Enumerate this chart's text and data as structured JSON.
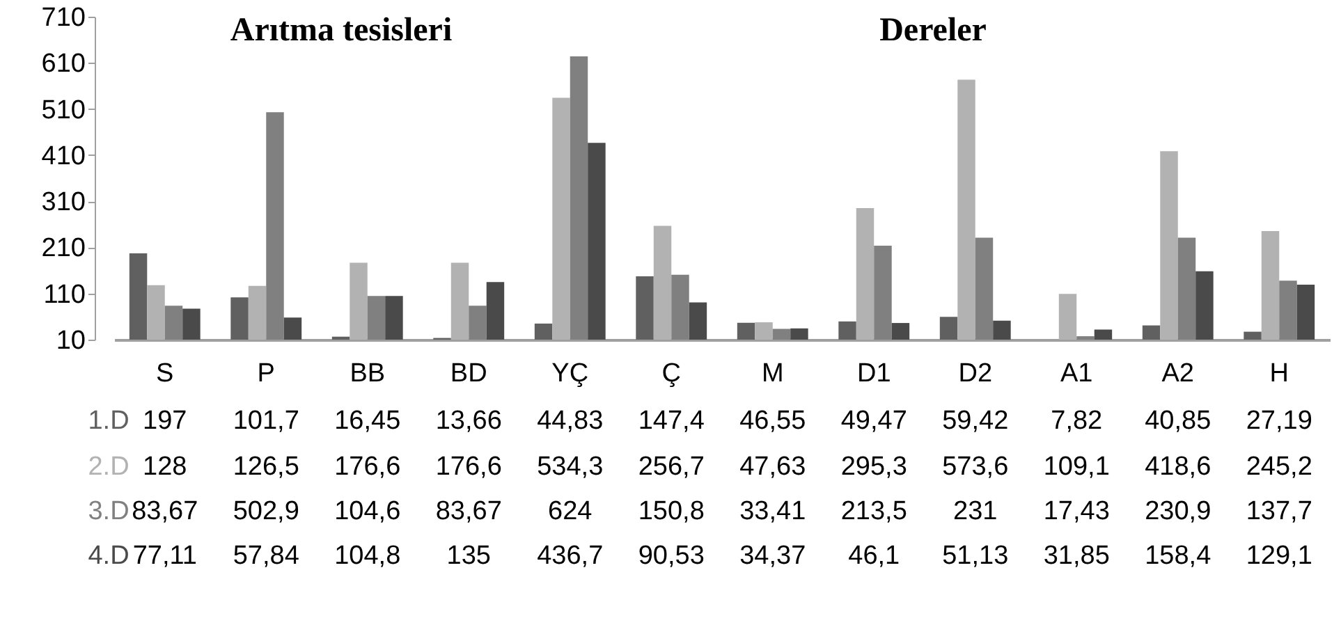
{
  "chart_data": {
    "type": "bar",
    "categories": [
      "S",
      "P",
      "BB",
      "BD",
      "YÇ",
      "Ç",
      "M",
      "D1",
      "D2",
      "A1",
      "A2",
      "H"
    ],
    "ylim": [
      10,
      710
    ],
    "yticks": [
      10,
      110,
      210,
      310,
      410,
      510,
      610,
      710
    ],
    "grid": false,
    "annotations": [
      "Arıtma tesisleri",
      "Dereler"
    ],
    "series": [
      {
        "name": "1.D",
        "color": "#606060",
        "values": [
          197,
          101.7,
          16.45,
          13.66,
          44.83,
          147.4,
          46.55,
          49.47,
          59.42,
          null,
          40.85,
          27.19
        ],
        "value_labels": [
          "197",
          "101,7",
          "16,45",
          "13,66",
          "44,83",
          "147,4",
          "46,55",
          "49,47",
          "59,42",
          "7,82",
          "40,85",
          "27,19"
        ]
      },
      {
        "name": "2.D",
        "color": "#b2b2b2",
        "values": [
          128,
          126.5,
          176.6,
          176.6,
          534.3,
          256.7,
          47.63,
          295.3,
          573.6,
          109.1,
          418.6,
          245.2
        ],
        "value_labels": [
          "128",
          "126,5",
          "176,6",
          "176,6",
          "534,3",
          "256,7",
          "47,63",
          "295,3",
          "573,6",
          "109,1",
          "418,6",
          "245,2"
        ]
      },
      {
        "name": "3.D",
        "color": "#808080",
        "values": [
          83.67,
          502.9,
          104.6,
          83.67,
          624,
          150.8,
          33.41,
          213.5,
          231,
          17.43,
          230.9,
          137.7
        ],
        "value_labels": [
          "83,67",
          "502,9",
          "104,6",
          "83,67",
          "624",
          "150,8",
          "33,41",
          "213,5",
          "231",
          "17,43",
          "230,9",
          "137,7"
        ]
      },
      {
        "name": "4.D",
        "color": "#4a4a4a",
        "values": [
          77.11,
          57.84,
          104.8,
          135,
          436.7,
          90.53,
          34.37,
          46.1,
          51.13,
          31.85,
          158.4,
          129.1
        ],
        "value_labels": [
          "77,11",
          "57,84",
          "104,8",
          "135",
          "436,7",
          "90,53",
          "34,37",
          "46,1",
          "51,13",
          "31,85",
          "158,4",
          "129,1"
        ]
      }
    ]
  }
}
